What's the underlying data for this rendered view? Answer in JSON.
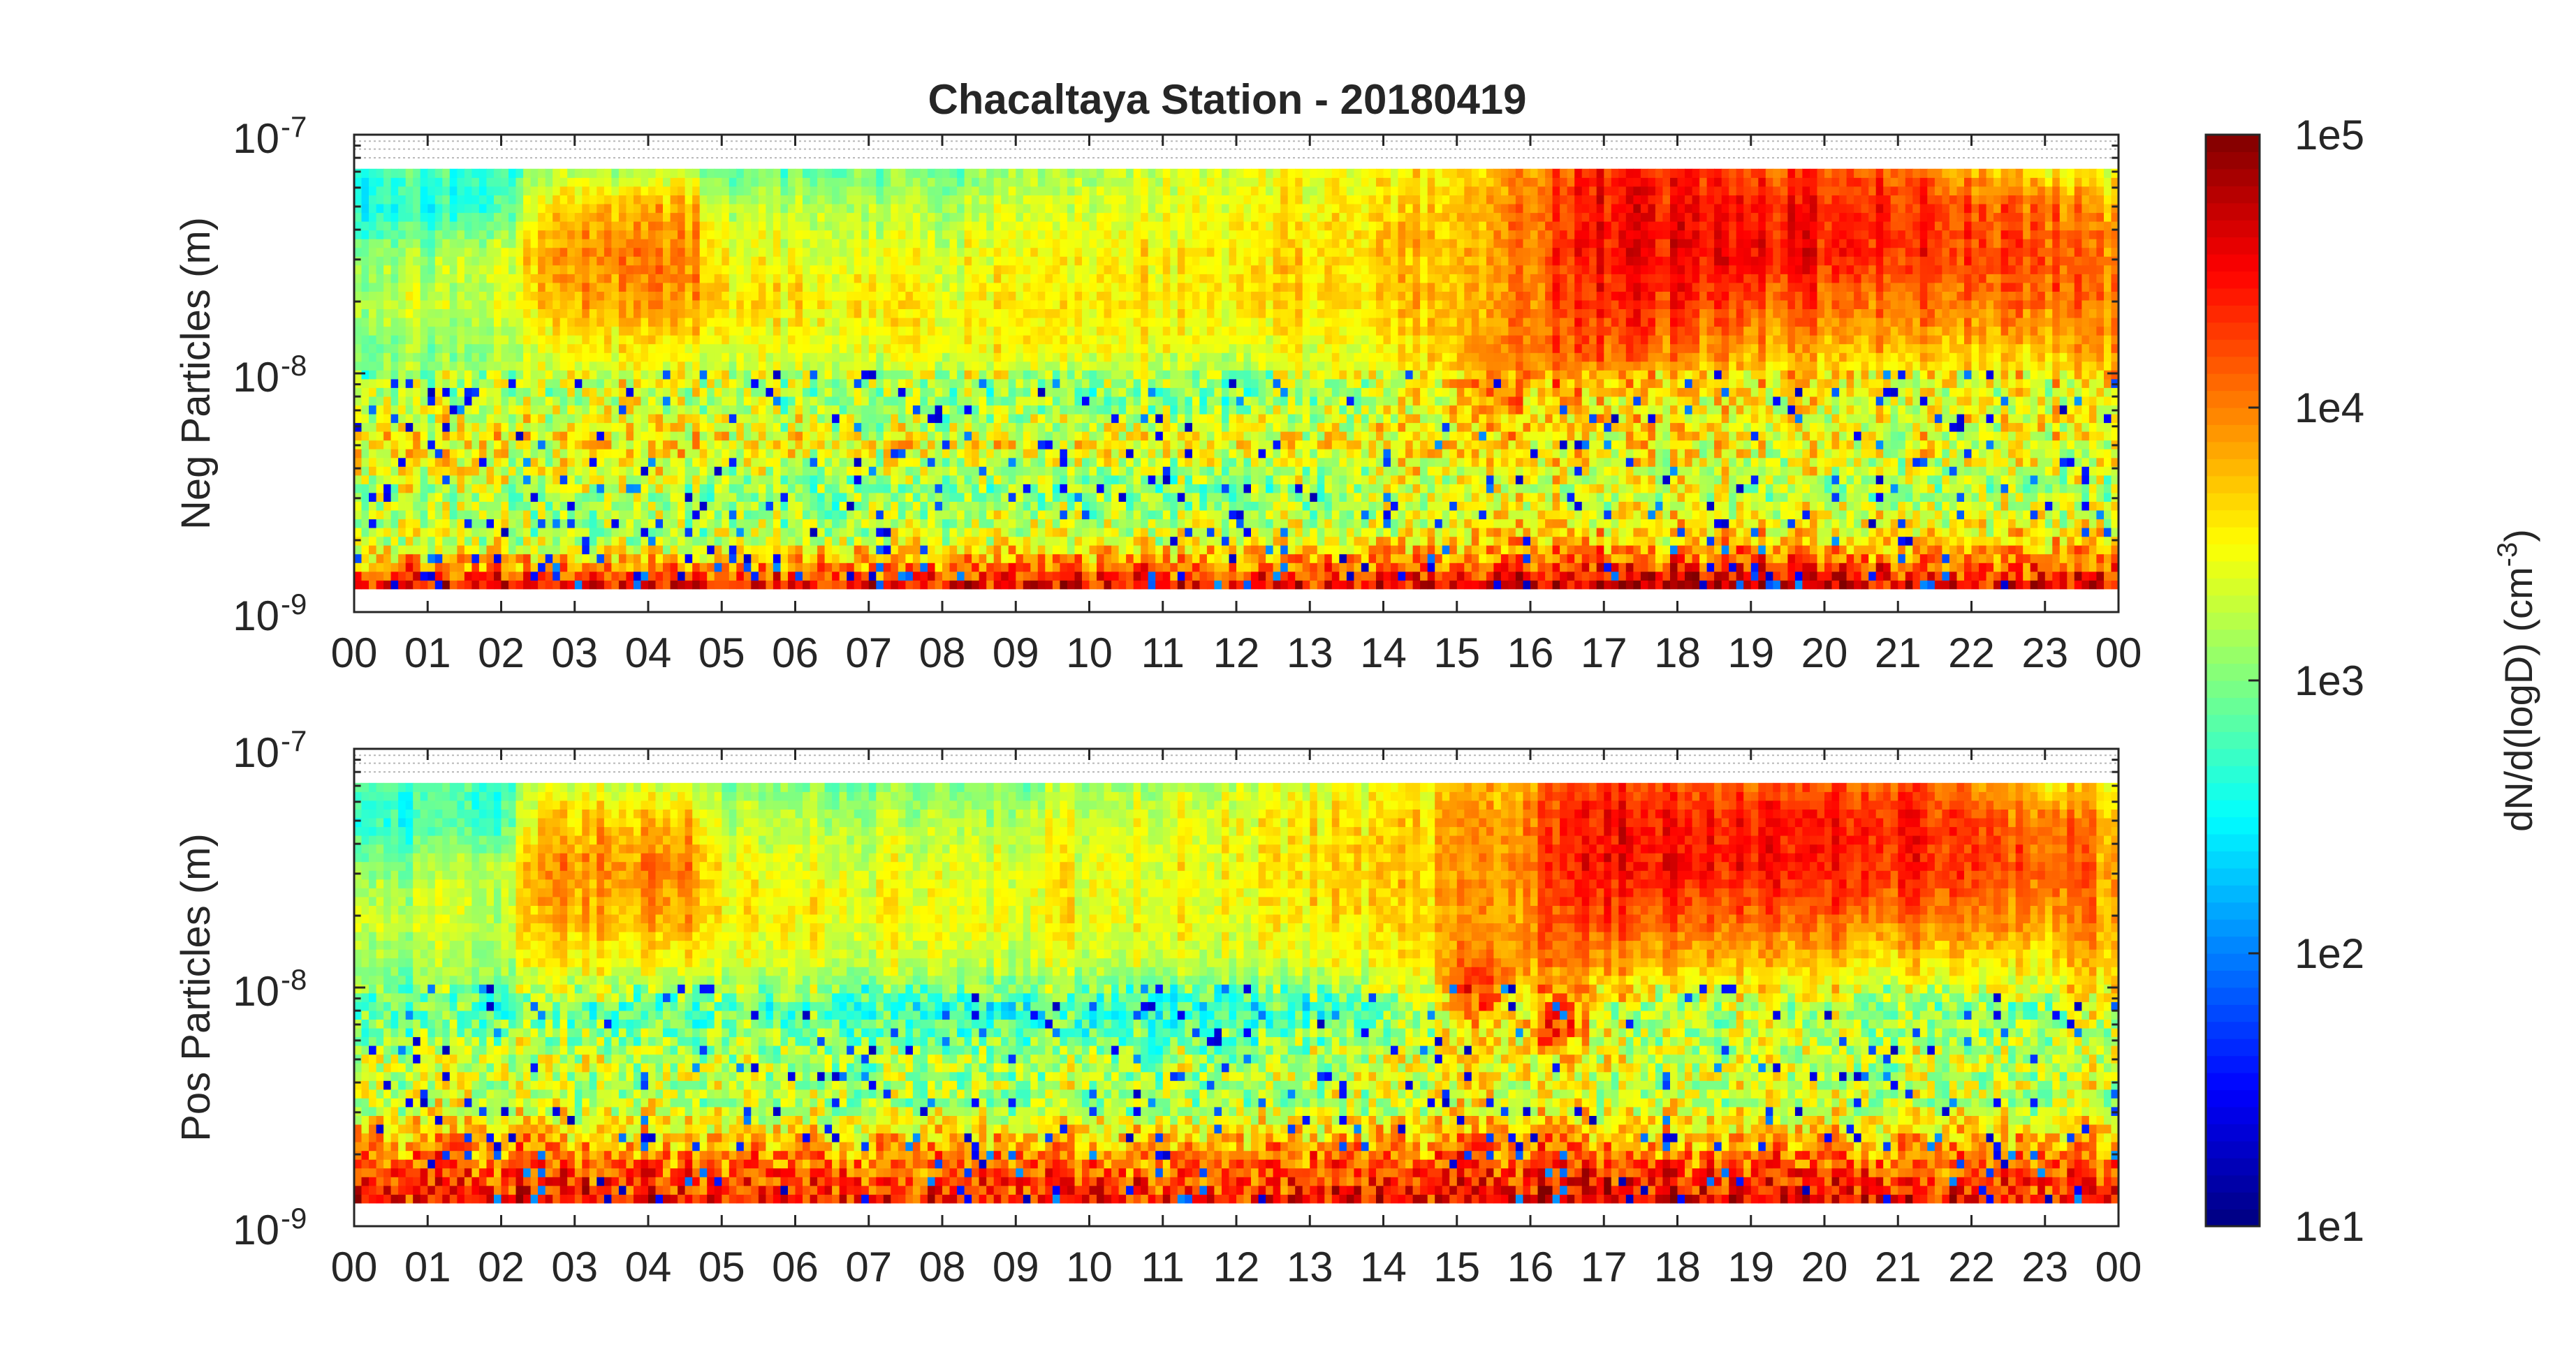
{
  "chart_data": {
    "title": "Chacaltaya Station - 20180419",
    "type": "heatmap",
    "x_tick_labels": [
      "00",
      "01",
      "02",
      "03",
      "04",
      "05",
      "06",
      "07",
      "08",
      "09",
      "10",
      "11",
      "12",
      "13",
      "14",
      "15",
      "16",
      "17",
      "18",
      "19",
      "20",
      "21",
      "22",
      "23",
      "00"
    ],
    "x_range_hours": [
      0,
      24
    ],
    "y_scale": "log",
    "y_range_m": [
      1e-09,
      1e-07
    ],
    "y_tick_labels": [
      {
        "base": "10",
        "exp": "-9"
      },
      {
        "base": "10",
        "exp": "-8"
      },
      {
        "base": "10",
        "exp": "-7"
      }
    ],
    "data_size_range_m": [
      1.25e-09,
      7.2e-08
    ],
    "grid_lines_m": [
      8e-08,
      8.7e-08,
      9.4e-08
    ],
    "panels": [
      {
        "ylabel": "Neg Particles (m)",
        "log10_concentration": {
          "hours": [
            0,
            2,
            2.6,
            4.6,
            5,
            8,
            12,
            14,
            15.5,
            17,
            19,
            21,
            23,
            24
          ],
          "log10_diameter_m": [
            -8.9,
            -8.7,
            -8.5,
            -8.3,
            -8.1,
            -7.9,
            -7.7,
            -7.5,
            -7.3,
            -7.14
          ],
          "values": [
            [
              4.6,
              3.2,
              3.3,
              3.6,
              3.2,
              3.0,
              3.3,
              3.0,
              2.6,
              2.8
            ],
            [
              4.6,
              3.3,
              3.3,
              3.6,
              3.3,
              3.1,
              3.3,
              3.3,
              2.7,
              2.7
            ],
            [
              4.6,
              3.2,
              3.2,
              3.6,
              3.3,
              3.5,
              3.8,
              3.9,
              3.7,
              3.2
            ],
            [
              4.5,
              3.2,
              3.1,
              3.6,
              3.3,
              3.5,
              3.9,
              4.0,
              3.8,
              3.2
            ],
            [
              4.5,
              3.2,
              3.0,
              3.5,
              3.2,
              3.3,
              3.6,
              3.4,
              3.2,
              2.8
            ],
            [
              4.6,
              3.4,
              3.0,
              3.5,
              3.0,
              3.5,
              3.5,
              3.4,
              3.2,
              3.0
            ],
            [
              4.6,
              3.4,
              3.0,
              3.5,
              3.0,
              3.4,
              3.6,
              3.6,
              3.5,
              3.4
            ],
            [
              4.6,
              3.5,
              3.2,
              3.6,
              3.3,
              3.5,
              3.7,
              3.7,
              3.6,
              3.5
            ],
            [
              4.7,
              3.7,
              3.5,
              3.7,
              3.9,
              4.0,
              3.9,
              3.9,
              3.9,
              3.8
            ],
            [
              4.8,
              3.7,
              3.3,
              3.6,
              3.6,
              4.2,
              4.4,
              4.5,
              4.5,
              4.4
            ],
            [
              4.8,
              3.7,
              3.2,
              3.5,
              3.5,
              3.8,
              4.2,
              4.5,
              4.4,
              4.2
            ],
            [
              4.7,
              3.7,
              3.2,
              3.5,
              3.4,
              3.8,
              4.1,
              4.4,
              4.4,
              4.2
            ],
            [
              4.6,
              3.6,
              3.2,
              3.5,
              3.4,
              3.7,
              4.1,
              4.2,
              4.1,
              3.5
            ],
            [
              4.6,
              3.6,
              3.2,
              3.4,
              3.6,
              3.9,
              4.0,
              4.0,
              3.8,
              3.4
            ]
          ]
        }
      },
      {
        "ylabel": "Pos Particles (m)",
        "log10_concentration": {
          "hours": [
            0,
            2,
            2.6,
            4.6,
            5,
            8,
            12,
            14,
            15.5,
            17,
            19,
            21,
            23,
            24
          ],
          "log10_diameter_m": [
            -8.9,
            -8.7,
            -8.5,
            -8.3,
            -8.1,
            -7.9,
            -7.7,
            -7.5,
            -7.3,
            -7.14
          ],
          "values": [
            [
              4.5,
              4.0,
              3.3,
              3.2,
              2.8,
              3.0,
              3.3,
              3.0,
              2.6,
              2.8
            ],
            [
              4.5,
              4.0,
              3.4,
              3.3,
              2.9,
              3.2,
              3.3,
              3.3,
              2.8,
              2.8
            ],
            [
              4.5,
              4.0,
              3.3,
              3.3,
              2.9,
              3.5,
              3.8,
              3.9,
              3.7,
              3.3
            ],
            [
              4.5,
              4.0,
              3.3,
              3.3,
              2.9,
              3.5,
              3.9,
              4.0,
              3.8,
              3.3
            ],
            [
              4.4,
              3.9,
              3.2,
              3.2,
              2.8,
              3.3,
              3.5,
              3.4,
              3.2,
              3.0
            ],
            [
              4.5,
              4.0,
              3.2,
              3.2,
              2.7,
              3.3,
              3.5,
              3.4,
              3.2,
              3.0
            ],
            [
              4.5,
              4.0,
              3.2,
              3.2,
              2.6,
              3.3,
              3.5,
              3.5,
              3.5,
              3.3
            ],
            [
              4.5,
              4.0,
              3.3,
              3.3,
              2.9,
              3.4,
              3.6,
              3.7,
              3.6,
              3.4
            ],
            [
              4.6,
              4.1,
              3.5,
              3.5,
              3.7,
              4.0,
              3.9,
              3.9,
              3.9,
              3.8
            ],
            [
              4.7,
              4.1,
              3.4,
              3.4,
              3.3,
              3.9,
              4.3,
              4.5,
              4.5,
              4.3
            ],
            [
              4.6,
              4.0,
              3.3,
              3.3,
              3.2,
              3.7,
              4.1,
              4.4,
              4.4,
              4.1
            ],
            [
              4.6,
              4.0,
              3.3,
              3.3,
              3.1,
              3.6,
              4.1,
              4.4,
              4.4,
              4.2
            ],
            [
              4.5,
              4.0,
              3.3,
              3.3,
              3.1,
              3.6,
              4.0,
              4.2,
              4.1,
              3.7
            ],
            [
              4.5,
              4.0,
              3.3,
              3.3,
              3.4,
              3.8,
              3.9,
              3.9,
              3.8,
              3.5
            ]
          ]
        },
        "hotspots": [
          {
            "hour": 15.3,
            "log10_diameter_m": -8.0,
            "log10_concentration": 4.3
          },
          {
            "hour": 16.4,
            "log10_diameter_m": -8.15,
            "log10_concentration": 4.3
          }
        ]
      }
    ],
    "colorbar": {
      "label": "dN/d(logD) (cm",
      "label_exp": "-3",
      "label_close": ")",
      "log10_range": [
        1,
        5
      ],
      "tick_labels": [
        "1e1",
        "1e2",
        "1e3",
        "1e4",
        "1e5"
      ],
      "colormap": "jet",
      "levels": 64
    }
  }
}
